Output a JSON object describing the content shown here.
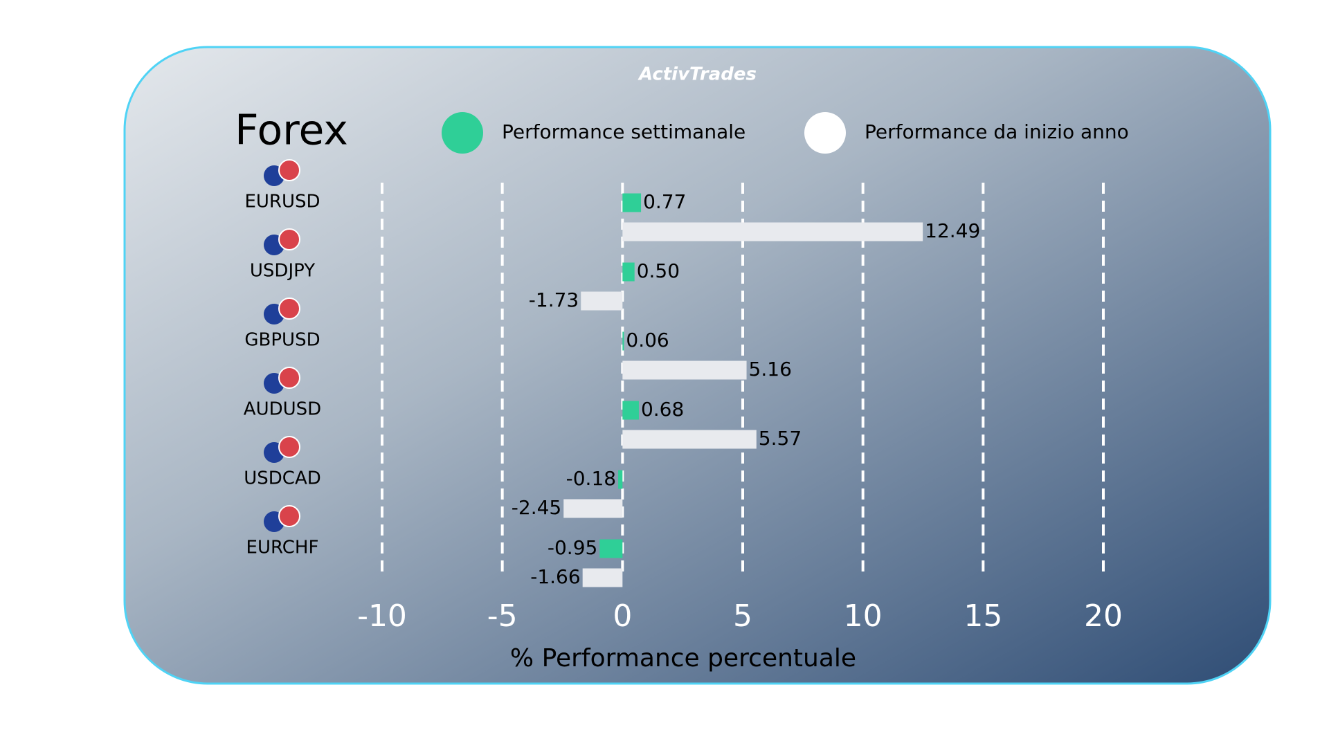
{
  "chart_data": {
    "type": "bar",
    "orientation": "horizontal",
    "brand": "ActivTrades",
    "title": "Forex",
    "x_label": "% Performance percentuale",
    "categories": [
      "EURUSD",
      "USDJPY",
      "GBPUSD",
      "AUDUSD",
      "USDCAD",
      "EURCHF"
    ],
    "series": [
      {
        "name": "Performance settimanale",
        "color": "#2fcf97",
        "values": [
          0.77,
          0.5,
          0.06,
          0.68,
          -0.18,
          -0.95
        ],
        "value_labels": [
          "0.77",
          "0.50",
          "0.06",
          "0.68",
          "-0.18",
          "-0.95"
        ]
      },
      {
        "name": "Performance da inizio anno",
        "color": "#e8eaee",
        "values": [
          12.49,
          -1.73,
          5.16,
          5.57,
          -2.45,
          -1.66
        ],
        "value_labels": [
          "12.49",
          "-1.73",
          "5.16",
          "5.57",
          "-2.45",
          "-1.66"
        ]
      }
    ],
    "xlim": [
      -10,
      20
    ],
    "xticks": [
      -10,
      -5,
      0,
      5,
      10,
      15,
      20
    ],
    "grid": true
  }
}
